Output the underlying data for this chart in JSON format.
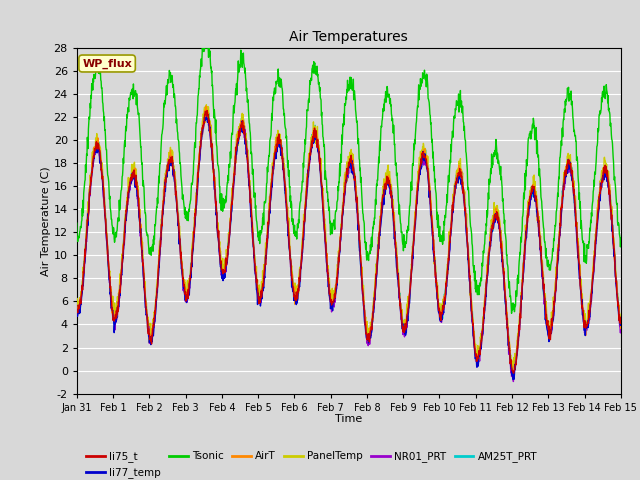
{
  "title": "Air Temperatures",
  "xlabel": "Time",
  "ylabel": "Air Temperature (C)",
  "ylim": [
    -2,
    28
  ],
  "yticks": [
    -2,
    0,
    2,
    4,
    6,
    8,
    10,
    12,
    14,
    16,
    18,
    20,
    22,
    24,
    26,
    28
  ],
  "bg_color": "#d8d8d8",
  "plot_bg_color": "#d8d8d8",
  "grid_color": "white",
  "series_order": [
    "AM25T_PRT",
    "PanelTemp",
    "NR01_PRT",
    "AirT",
    "li77_temp",
    "li75_t",
    "Tsonic"
  ],
  "series": {
    "li75_t": {
      "color": "#cc0000",
      "zorder": 6
    },
    "li77_temp": {
      "color": "#0000cc",
      "zorder": 5
    },
    "Tsonic": {
      "color": "#00cc00",
      "zorder": 7
    },
    "AirT": {
      "color": "#ff8800",
      "zorder": 5
    },
    "PanelTemp": {
      "color": "#cccc00",
      "zorder": 3
    },
    "NR01_PRT": {
      "color": "#9900cc",
      "zorder": 4
    },
    "AM25T_PRT": {
      "color": "#00cccc",
      "zorder": 3
    }
  },
  "wp_flux_label": "WP_flux",
  "wp_flux_bg": "#ffffcc",
  "wp_flux_border": "#999900",
  "wp_flux_color": "#880000",
  "legend_entries_row1": [
    "li75_t",
    "li77_temp",
    "Tsonic",
    "AirT",
    "PanelTemp",
    "NR01_PRT"
  ],
  "legend_colors_row1": [
    "#cc0000",
    "#0000cc",
    "#00cc00",
    "#ff8800",
    "#cccc00",
    "#9900cc"
  ],
  "legend_entries_row2": [
    "AM25T_PRT"
  ],
  "legend_colors_row2": [
    "#00cccc"
  ],
  "xtick_labels": [
    "Jan 31",
    "Feb 1",
    "Feb 2",
    "Feb 3",
    "Feb 4",
    "Feb 5",
    "Feb 6",
    "Feb 7",
    "Feb 8",
    "Feb 9",
    "Feb 10",
    "Feb 11",
    "Feb 12",
    "Feb 13",
    "Feb 14",
    "Feb 15"
  ],
  "xtick_positions": [
    0,
    1,
    2,
    3,
    4,
    5,
    6,
    7,
    8,
    9,
    10,
    11,
    12,
    13,
    14,
    15
  ]
}
